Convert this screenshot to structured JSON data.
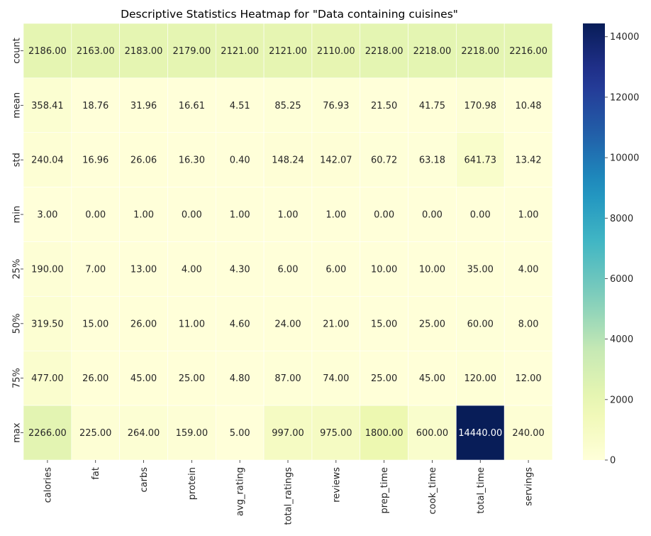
{
  "chart_data": {
    "type": "heatmap",
    "title": "Descriptive Statistics Heatmap for \"Data containing cuisines\"",
    "x_categories": [
      "calories",
      "fat",
      "carbs",
      "protein",
      "avg_rating",
      "total_ratings",
      "reviews",
      "prep_time",
      "cook_time",
      "total_time",
      "servings"
    ],
    "y_categories": [
      "count",
      "mean",
      "std",
      "min",
      "25%",
      "50%",
      "75%",
      "max"
    ],
    "values": [
      [
        2186.0,
        2163.0,
        2183.0,
        2179.0,
        2121.0,
        2121.0,
        2110.0,
        2218.0,
        2218.0,
        2218.0,
        2216.0
      ],
      [
        358.41,
        18.76,
        31.96,
        16.61,
        4.51,
        85.25,
        76.93,
        21.5,
        41.75,
        170.98,
        10.48
      ],
      [
        240.04,
        16.96,
        26.06,
        16.3,
        0.4,
        148.24,
        142.07,
        60.72,
        63.18,
        641.73,
        13.42
      ],
      [
        3.0,
        0.0,
        1.0,
        0.0,
        1.0,
        1.0,
        1.0,
        0.0,
        0.0,
        0.0,
        1.0
      ],
      [
        190.0,
        7.0,
        13.0,
        4.0,
        4.3,
        6.0,
        6.0,
        10.0,
        10.0,
        35.0,
        4.0
      ],
      [
        319.5,
        15.0,
        26.0,
        11.0,
        4.6,
        24.0,
        21.0,
        15.0,
        25.0,
        60.0,
        8.0
      ],
      [
        477.0,
        26.0,
        45.0,
        25.0,
        4.8,
        87.0,
        74.0,
        25.0,
        45.0,
        120.0,
        12.0
      ],
      [
        2266.0,
        225.0,
        264.0,
        159.0,
        5.0,
        997.0,
        975.0,
        1800.0,
        600.0,
        14440.0,
        240.0
      ]
    ],
    "value_format_decimals": 2,
    "colormap": "YlGnBu",
    "color_range": [
      0,
      14440
    ],
    "colorbar_ticks": [
      0,
      2000,
      4000,
      6000,
      8000,
      10000,
      12000,
      14000
    ],
    "legend_position": "right"
  }
}
